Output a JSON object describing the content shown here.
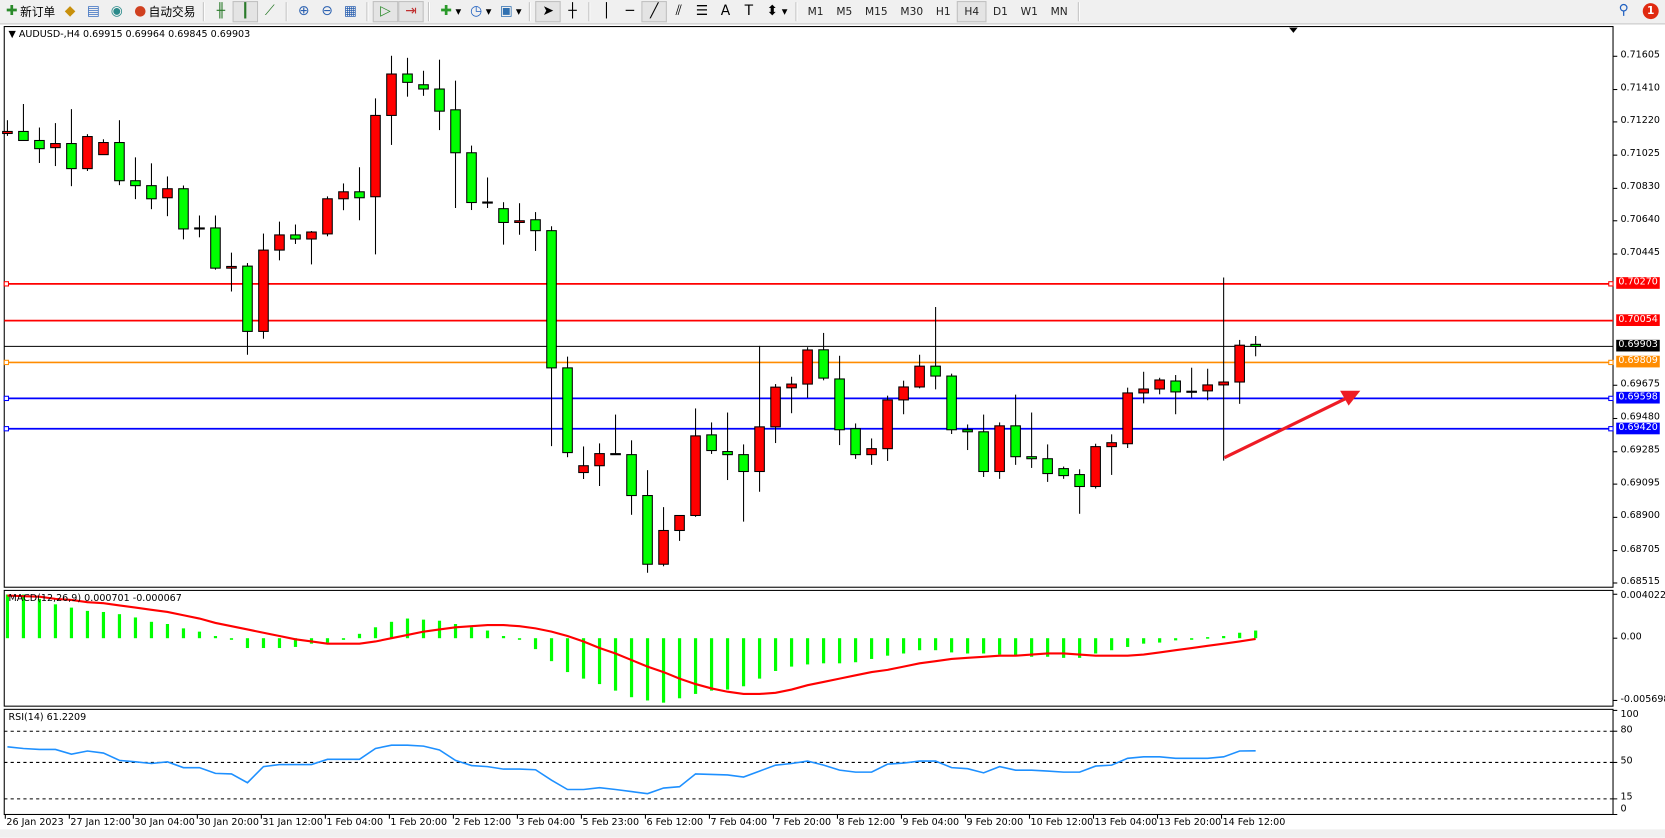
{
  "toolbar": {
    "new_order_label": "新订单",
    "auto_trading_label": "自动交易",
    "timeframes": [
      "M1",
      "M5",
      "M15",
      "M30",
      "H1",
      "H4",
      "D1",
      "W1",
      "MN"
    ],
    "selected_timeframe": "H4",
    "notification_count": "1"
  },
  "chart": {
    "header": "AUDUSD-,H4  0.69915 0.69964 0.69845 0.69903",
    "price_ticks": [
      "0.71605",
      "0.71410",
      "0.71220",
      "0.71025",
      "0.70830",
      "0.70640",
      "0.70445",
      "0.69675",
      "0.69480",
      "0.69285",
      "0.69095",
      "0.68900",
      "0.68705",
      "0.68515"
    ],
    "levels": [
      {
        "price": "0.70270",
        "color": "#ff0000"
      },
      {
        "price": "0.70054",
        "color": "#ff0000"
      },
      {
        "price": "0.69903",
        "color": "#000000"
      },
      {
        "price": "0.69809",
        "color": "#ff8c00"
      },
      {
        "price": "0.69598",
        "color": "#0000ff"
      },
      {
        "price": "0.69420",
        "color": "#0000ff"
      }
    ],
    "bull_color": "#ff0000",
    "bear_color": "#00ff00",
    "arrow_color": "#ee1c25",
    "time_labels": [
      "26 Jan 2023",
      "27 Jan 12:00",
      "30 Jan 04:00",
      "30 Jan 20:00",
      "31 Jan 12:00",
      "1 Feb 04:00",
      "1 Feb 20:00",
      "2 Feb 12:00",
      "3 Feb 04:00",
      "5 Feb 23:00",
      "6 Feb 12:00",
      "7 Feb 04:00",
      "7 Feb 20:00",
      "8 Feb 12:00",
      "9 Feb 04:00",
      "9 Feb 20:00",
      "10 Feb 12:00",
      "13 Feb 04:00",
      "13 Feb 20:00",
      "14 Feb 12:00"
    ]
  },
  "macd": {
    "title": "MACD(12,26,9) 0.000701 -0.000067",
    "ticks": [
      "0.004022",
      "0.00",
      "-0.005698"
    ],
    "hist_color": "#00ff00",
    "signal_color": "#ff0000"
  },
  "rsi": {
    "title": "RSI(14) 61.2209",
    "ticks": [
      "100",
      "80",
      "50",
      "15",
      "0"
    ],
    "line_color": "#1e90ff"
  },
  "chart_data": {
    "type": "candlestick",
    "symbol": "AUDUSD-",
    "timeframe": "H4",
    "ylim": [
      0.68515,
      0.71605
    ],
    "ohlc": [
      [
        0.71152,
        0.7123,
        0.71138,
        0.71164
      ],
      [
        0.71164,
        0.71325,
        0.71111,
        0.71111
      ],
      [
        0.71111,
        0.71187,
        0.70979,
        0.71063
      ],
      [
        0.71069,
        0.71213,
        0.70961,
        0.71093
      ],
      [
        0.71093,
        0.71295,
        0.70843,
        0.70946
      ],
      [
        0.70946,
        0.71148,
        0.70932,
        0.71134
      ],
      [
        0.71028,
        0.71118,
        0.71028,
        0.71099
      ],
      [
        0.71099,
        0.7123,
        0.70849,
        0.70875
      ],
      [
        0.70875,
        0.71012,
        0.70767,
        0.70846
      ],
      [
        0.70846,
        0.70977,
        0.70708,
        0.70769
      ],
      [
        0.70775,
        0.709,
        0.70667,
        0.70828
      ],
      [
        0.70828,
        0.70847,
        0.70531,
        0.70592
      ],
      [
        0.70592,
        0.70671,
        0.70543,
        0.70598
      ],
      [
        0.70598,
        0.70671,
        0.70353,
        0.70362
      ],
      [
        0.70362,
        0.70453,
        0.70225,
        0.70372
      ],
      [
        0.70374,
        0.70392,
        0.69854,
        0.69991
      ],
      [
        0.69991,
        0.70565,
        0.69948,
        0.70468
      ],
      [
        0.70468,
        0.70635,
        0.70408,
        0.70557
      ],
      [
        0.70557,
        0.70618,
        0.70504,
        0.70533
      ],
      [
        0.70533,
        0.7058,
        0.70384,
        0.70574
      ],
      [
        0.70563,
        0.70783,
        0.70549,
        0.70769
      ],
      [
        0.70769,
        0.70859,
        0.70702,
        0.7081
      ],
      [
        0.7081,
        0.70954,
        0.70643,
        0.70775
      ],
      [
        0.70781,
        0.71358,
        0.70443,
        0.71258
      ],
      [
        0.71258,
        0.71608,
        0.71085,
        0.71501
      ],
      [
        0.71501,
        0.71596,
        0.71368,
        0.71452
      ],
      [
        0.71438,
        0.7152,
        0.71373,
        0.71413
      ],
      [
        0.71413,
        0.71585,
        0.71172,
        0.71283
      ],
      [
        0.71291,
        0.71462,
        0.70715,
        0.71039
      ],
      [
        0.71039,
        0.71081,
        0.70703,
        0.70747
      ],
      [
        0.7075,
        0.70894,
        0.70715,
        0.70745
      ],
      [
        0.70711,
        0.70749,
        0.705,
        0.7063
      ],
      [
        0.7063,
        0.70743,
        0.70558,
        0.7064
      ],
      [
        0.70646,
        0.70691,
        0.70463,
        0.70582
      ],
      [
        0.70582,
        0.70608,
        0.69318,
        0.69777
      ],
      [
        0.69777,
        0.69843,
        0.69253,
        0.6928
      ],
      [
        0.69163,
        0.69316,
        0.69125,
        0.69203
      ],
      [
        0.69203,
        0.69334,
        0.69084,
        0.69274
      ],
      [
        0.69274,
        0.69503,
        0.69268,
        0.69268
      ],
      [
        0.69268,
        0.69352,
        0.68915,
        0.69028
      ],
      [
        0.69028,
        0.69177,
        0.68575,
        0.68625
      ],
      [
        0.68625,
        0.6896,
        0.68613,
        0.68823
      ],
      [
        0.68823,
        0.68911,
        0.68762,
        0.68911
      ],
      [
        0.68911,
        0.69539,
        0.68903,
        0.69378
      ],
      [
        0.69384,
        0.69457,
        0.69272,
        0.69292
      ],
      [
        0.69286,
        0.69515,
        0.69119,
        0.69268
      ],
      [
        0.69268,
        0.69328,
        0.68875,
        0.69169
      ],
      [
        0.69169,
        0.69906,
        0.6905,
        0.69431
      ],
      [
        0.69431,
        0.69682,
        0.69336,
        0.69664
      ],
      [
        0.6966,
        0.69725,
        0.69511,
        0.69682
      ],
      [
        0.69682,
        0.69898,
        0.69602,
        0.69882
      ],
      [
        0.69883,
        0.69982,
        0.69704,
        0.69717
      ],
      [
        0.69712,
        0.69848,
        0.69324,
        0.69414
      ],
      [
        0.6942,
        0.69451,
        0.69243,
        0.69268
      ],
      [
        0.69268,
        0.69363,
        0.69208,
        0.69303
      ],
      [
        0.69303,
        0.69614,
        0.69231,
        0.69589
      ],
      [
        0.69589,
        0.69702,
        0.69505,
        0.69665
      ],
      [
        0.69665,
        0.69854,
        0.69657,
        0.69787
      ],
      [
        0.69787,
        0.70134,
        0.69651,
        0.69729
      ],
      [
        0.69729,
        0.69743,
        0.69389,
        0.69414
      ],
      [
        0.69414,
        0.69445,
        0.69295,
        0.69402
      ],
      [
        0.69402,
        0.69503,
        0.69137,
        0.69169
      ],
      [
        0.69169,
        0.69457,
        0.69126,
        0.69437
      ],
      [
        0.69437,
        0.6962,
        0.69208,
        0.69256
      ],
      [
        0.69256,
        0.69515,
        0.6919,
        0.69244
      ],
      [
        0.69244,
        0.69328,
        0.69108,
        0.69157
      ],
      [
        0.69186,
        0.69198,
        0.69126,
        0.69145
      ],
      [
        0.69151,
        0.69182,
        0.68921,
        0.69081
      ],
      [
        0.69081,
        0.69332,
        0.69069,
        0.69315
      ],
      [
        0.69315,
        0.69387,
        0.69149,
        0.69338
      ],
      [
        0.69332,
        0.69661,
        0.69307,
        0.6963
      ],
      [
        0.6963,
        0.69754,
        0.69569,
        0.69653
      ],
      [
        0.69653,
        0.69719,
        0.69622,
        0.69706
      ],
      [
        0.697,
        0.69735,
        0.69505,
        0.69636
      ],
      [
        0.6964,
        0.69778,
        0.69603,
        0.69636
      ],
      [
        0.69642,
        0.69772,
        0.69587,
        0.69677
      ],
      [
        0.69677,
        0.70307,
        0.69233,
        0.69694
      ],
      [
        0.69694,
        0.69941,
        0.69566,
        0.6991
      ],
      [
        0.69915,
        0.69964,
        0.69845,
        0.69903
      ]
    ],
    "macd_hist": [
      0.004,
      0.004,
      0.0036,
      0.0031,
      0.0028,
      0.0025,
      0.0024,
      0.0022,
      0.0019,
      0.0015,
      0.0013,
      0.0009,
      0.0006,
      0.0002,
      -0.0001,
      -0.0009,
      -0.0009,
      -0.0009,
      -0.0008,
      -0.0005,
      -0.0004,
      -0.00015,
      0.0004,
      0.001,
      0.0015,
      0.0018,
      0.0017,
      0.0016,
      0.0013,
      0.001,
      0.0007,
      0.0002,
      -0.0001,
      -0.001,
      -0.0021,
      -0.0031,
      -0.0037,
      -0.0042,
      -0.0048,
      -0.0054,
      -0.0057,
      -0.0059,
      -0.0055,
      -0.0051,
      -0.0048,
      -0.0047,
      -0.0044,
      -0.0037,
      -0.003,
      -0.0026,
      -0.0024,
      -0.0023,
      -0.0023,
      -0.0022,
      -0.0019,
      -0.0016,
      -0.0014,
      -0.0011,
      -0.0011,
      -0.0013,
      -0.0014,
      -0.0014,
      -0.0015,
      -0.0016,
      -0.0017,
      -0.0017,
      -0.0018,
      -0.0018,
      -0.0014,
      -0.0011,
      -0.0008,
      -0.0005,
      -0.0004,
      -0.0002,
      0.0,
      0.0001,
      0.0002,
      0.0005,
      0.000701
    ],
    "macd_signal": [
      0.0039,
      0.00385,
      0.0038,
      0.0036,
      0.0035,
      0.0033,
      0.0032,
      0.003,
      0.0028,
      0.0026,
      0.0024,
      0.0021,
      0.0018,
      0.0014,
      0.0011,
      0.0008,
      0.0005,
      0.0002,
      -0.0001,
      -0.0003,
      -0.0005,
      -0.0005,
      -0.0005,
      -0.0003,
      0.0,
      0.0003,
      0.0006,
      0.0008,
      0.001,
      0.0011,
      0.0012,
      0.0012,
      0.0011,
      0.0009,
      0.0006,
      0.0002,
      -0.0003,
      -0.0009,
      -0.0014,
      -0.002,
      -0.0026,
      -0.0031,
      -0.0037,
      -0.0042,
      -0.0046,
      -0.0049,
      -0.0051,
      -0.0051,
      -0.005,
      -0.0047,
      -0.0043,
      -0.004,
      -0.0037,
      -0.0034,
      -0.0031,
      -0.0029,
      -0.0026,
      -0.0023,
      -0.0021,
      -0.0019,
      -0.0018,
      -0.0017,
      -0.0016,
      -0.0016,
      -0.0015,
      -0.0014,
      -0.0014,
      -0.0015,
      -0.0016,
      -0.0016,
      -0.0016,
      -0.0015,
      -0.0013,
      -0.0011,
      -0.0009,
      -0.0007,
      -0.0005,
      -0.0003,
      -6.7e-05
    ],
    "macd_ylim": [
      -0.005698,
      0.004022
    ],
    "rsi": [
      65,
      63.4,
      62.5,
      62.5,
      58,
      61,
      59,
      52,
      50.6,
      49,
      50.6,
      45,
      45,
      39.5,
      39,
      30.5,
      46,
      48,
      48,
      48,
      53,
      53,
      53,
      63.4,
      66.6,
      66.6,
      65.7,
      62,
      52,
      47,
      46,
      43.6,
      43.6,
      43,
      33,
      24,
      24,
      25.7,
      24,
      22,
      20,
      25.4,
      26.7,
      39,
      38.5,
      38,
      36,
      41.7,
      47.4,
      49,
      51.3,
      47.4,
      42.6,
      40.7,
      40.7,
      48.4,
      49.4,
      51.3,
      51.3,
      45,
      44,
      40,
      46,
      42.6,
      42.6,
      41.7,
      40.7,
      40.7,
      46.5,
      47.4,
      54,
      55.4,
      55.4,
      54,
      54,
      54,
      55.4,
      61,
      61.2209
    ],
    "rsi_levels": [
      80,
      50,
      15
    ],
    "rsi_ylim": [
      0,
      100
    ],
    "grid": false
  }
}
